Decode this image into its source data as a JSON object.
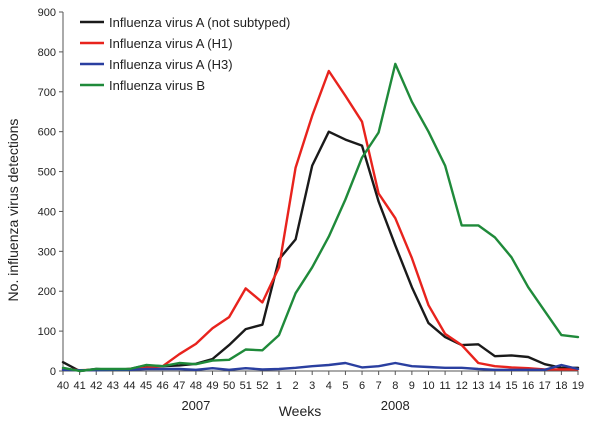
{
  "chart_data": {
    "type": "line",
    "title": "",
    "xlabel": "Weeks",
    "ylabel": "No. influenza virus detections",
    "ylim": [
      0,
      900
    ],
    "yticks": [
      0,
      100,
      200,
      300,
      400,
      500,
      600,
      700,
      800,
      900
    ],
    "grid": false,
    "legend_position": "top-left",
    "year_labels": [
      {
        "label": "2007",
        "at_week": "48"
      },
      {
        "label": "2008",
        "at_week": "8"
      }
    ],
    "categories": [
      "40",
      "41",
      "42",
      "43",
      "44",
      "45",
      "46",
      "47",
      "48",
      "49",
      "50",
      "51",
      "52",
      "1",
      "2",
      "3",
      "4",
      "5",
      "6",
      "7",
      "8",
      "9",
      "10",
      "11",
      "12",
      "13",
      "14",
      "15",
      "16",
      "17",
      "18",
      "19"
    ],
    "series": [
      {
        "name": "Influenza virus A (not subtyped)",
        "color": "#1a1a1a",
        "values": [
          22,
          0,
          5,
          3,
          5,
          14,
          12,
          14,
          18,
          30,
          65,
          105,
          116,
          280,
          330,
          515,
          600,
          580,
          565,
          425,
          315,
          210,
          120,
          85,
          65,
          67,
          37,
          39,
          35,
          17,
          8,
          8
        ]
      },
      {
        "name": "Influenza virus A (H1)",
        "color": "#e8231d",
        "values": [
          5,
          2,
          3,
          3,
          5,
          8,
          12,
          42,
          68,
          107,
          135,
          207,
          172,
          260,
          510,
          640,
          752,
          690,
          625,
          445,
          383,
          283,
          165,
          93,
          65,
          20,
          12,
          9,
          7,
          4,
          4,
          4
        ]
      },
      {
        "name": "Influenza virus A (H3)",
        "color": "#2a3fa0",
        "values": [
          3,
          2,
          2,
          3,
          3,
          5,
          5,
          5,
          3,
          7,
          3,
          7,
          4,
          5,
          8,
          12,
          15,
          20,
          9,
          12,
          20,
          12,
          10,
          8,
          8,
          5,
          3,
          3,
          3,
          3,
          15,
          5
        ]
      },
      {
        "name": "Influenza virus B",
        "color": "#1f8a3a",
        "values": [
          8,
          0,
          5,
          5,
          5,
          15,
          12,
          20,
          17,
          26,
          28,
          54,
          52,
          90,
          195,
          260,
          337,
          430,
          535,
          598,
          770,
          675,
          600,
          515,
          365,
          365,
          335,
          285,
          210,
          150,
          90,
          85
        ]
      }
    ]
  }
}
